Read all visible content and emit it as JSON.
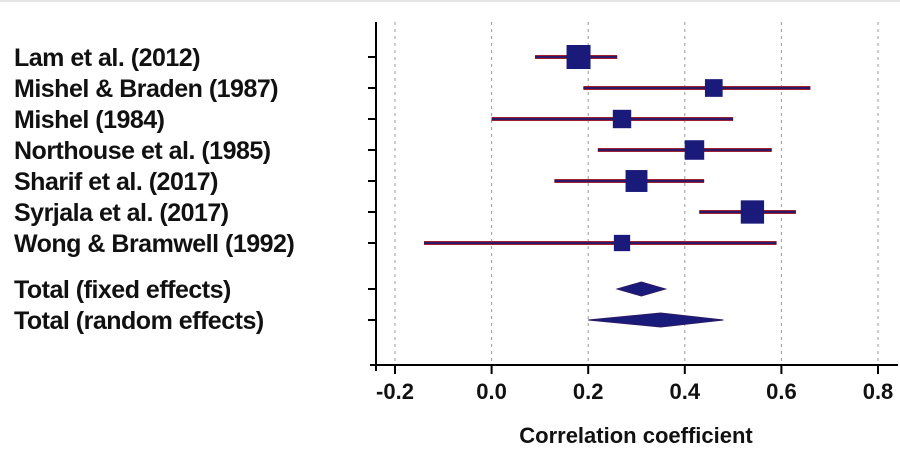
{
  "chart_data": {
    "type": "forest",
    "xlabel": "Correlation coefficient",
    "xlim": [
      -0.2,
      0.8
    ],
    "x_ticks": [
      -0.2,
      0.0,
      0.2,
      0.4,
      0.6,
      0.8
    ],
    "x_tick_labels": [
      "-0.2",
      "0.0",
      "0.2",
      "0.4",
      "0.6",
      "0.8"
    ],
    "grid": "vertical dashed at each tick",
    "colors": {
      "marker": "#1a1a7a",
      "ci_line": "#2c1a66",
      "ci_line_highlight": "#a02030",
      "axis": "#000000",
      "grid": "#9a9a9a"
    },
    "studies": [
      {
        "label": "Lam et al. (2012)",
        "estimate": 0.18,
        "ci_low": 0.09,
        "ci_high": 0.26,
        "weight": 1.0
      },
      {
        "label": "Mishel & Braden (1987)",
        "estimate": 0.46,
        "ci_low": 0.19,
        "ci_high": 0.66,
        "weight": 0.55
      },
      {
        "label": "Mishel (1984)",
        "estimate": 0.27,
        "ci_low": 0.0,
        "ci_high": 0.5,
        "weight": 0.6
      },
      {
        "label": "Northouse et al. (1985)",
        "estimate": 0.42,
        "ci_low": 0.22,
        "ci_high": 0.58,
        "weight": 0.68
      },
      {
        "label": "Sharif et al. (2017)",
        "estimate": 0.3,
        "ci_low": 0.13,
        "ci_high": 0.44,
        "weight": 0.85
      },
      {
        "label": "Syrjala et al. (2017)",
        "estimate": 0.54,
        "ci_low": 0.43,
        "ci_high": 0.63,
        "weight": 0.95
      },
      {
        "label": "Wong & Bramwell (1992)",
        "estimate": 0.27,
        "ci_low": -0.14,
        "ci_high": 0.59,
        "weight": 0.45
      }
    ],
    "totals": [
      {
        "label": "Total (fixed effects)",
        "estimate": 0.31,
        "ci_low": 0.26,
        "ci_high": 0.36
      },
      {
        "label": "Total (random effects)",
        "estimate": 0.35,
        "ci_low": 0.2,
        "ci_high": 0.48
      }
    ]
  }
}
